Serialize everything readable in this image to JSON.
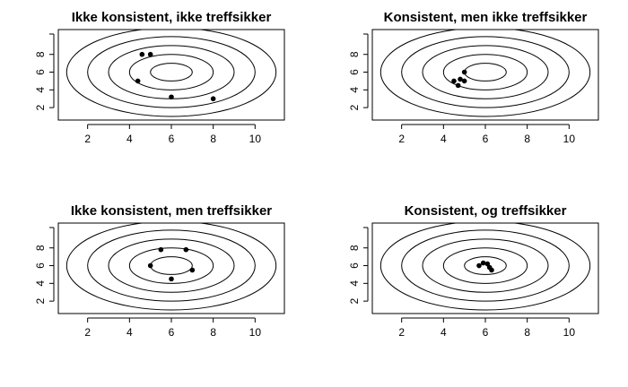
{
  "chart_data": [
    {
      "type": "scatter",
      "title": "Ikke konsistent, ikke treffsikker",
      "xlabel": "",
      "ylabel": "",
      "xlim": [
        0.6,
        11.4
      ],
      "ylim": [
        0.6,
        10.8
      ],
      "xticks": [
        2,
        4,
        6,
        8,
        10
      ],
      "yticks": [
        2,
        4,
        6,
        8
      ],
      "target_center": [
        6,
        6
      ],
      "target_radii": [
        1,
        2,
        3,
        4,
        5
      ],
      "points": [
        [
          4.6,
          8
        ],
        [
          5,
          8
        ],
        [
          4.4,
          5
        ],
        [
          6,
          3.2
        ],
        [
          8,
          3
        ]
      ]
    },
    {
      "type": "scatter",
      "title": "Konsistent, men ikke treffsikker",
      "xlabel": "",
      "ylabel": "",
      "xlim": [
        0.6,
        11.4
      ],
      "ylim": [
        0.6,
        10.8
      ],
      "xticks": [
        2,
        4,
        6,
        8,
        10
      ],
      "yticks": [
        2,
        4,
        6,
        8
      ],
      "target_center": [
        6,
        6
      ],
      "target_radii": [
        1,
        2,
        3,
        4,
        5
      ],
      "points": [
        [
          4.5,
          5
        ],
        [
          4.7,
          4.5
        ],
        [
          4.8,
          5.2
        ],
        [
          5,
          5
        ],
        [
          5,
          6
        ]
      ]
    },
    {
      "type": "scatter",
      "title": "Ikke konsistent, men treffsikker",
      "xlabel": "",
      "ylabel": "",
      "xlim": [
        0.6,
        11.4
      ],
      "ylim": [
        0.6,
        10.8
      ],
      "xticks": [
        2,
        4,
        6,
        8,
        10
      ],
      "yticks": [
        2,
        4,
        6,
        8
      ],
      "target_center": [
        6,
        6
      ],
      "target_radii": [
        1,
        2,
        3,
        4,
        5
      ],
      "points": [
        [
          5.5,
          7.8
        ],
        [
          6.7,
          7.8
        ],
        [
          5,
          6
        ],
        [
          7,
          5.5
        ],
        [
          6,
          4.5
        ]
      ]
    },
    {
      "type": "scatter",
      "title": "Konsistent, og treffsikker",
      "xlabel": "",
      "ylabel": "",
      "xlim": [
        0.6,
        11.4
      ],
      "ylim": [
        0.6,
        10.8
      ],
      "xticks": [
        2,
        4,
        6,
        8,
        10
      ],
      "yticks": [
        2,
        4,
        6,
        8
      ],
      "target_center": [
        6,
        6
      ],
      "target_radii": [
        1,
        2,
        3,
        4,
        5
      ],
      "points": [
        [
          5.7,
          6
        ],
        [
          5.9,
          6.3
        ],
        [
          6.1,
          6.2
        ],
        [
          6.2,
          5.8
        ],
        [
          6.3,
          5.5
        ]
      ]
    }
  ]
}
